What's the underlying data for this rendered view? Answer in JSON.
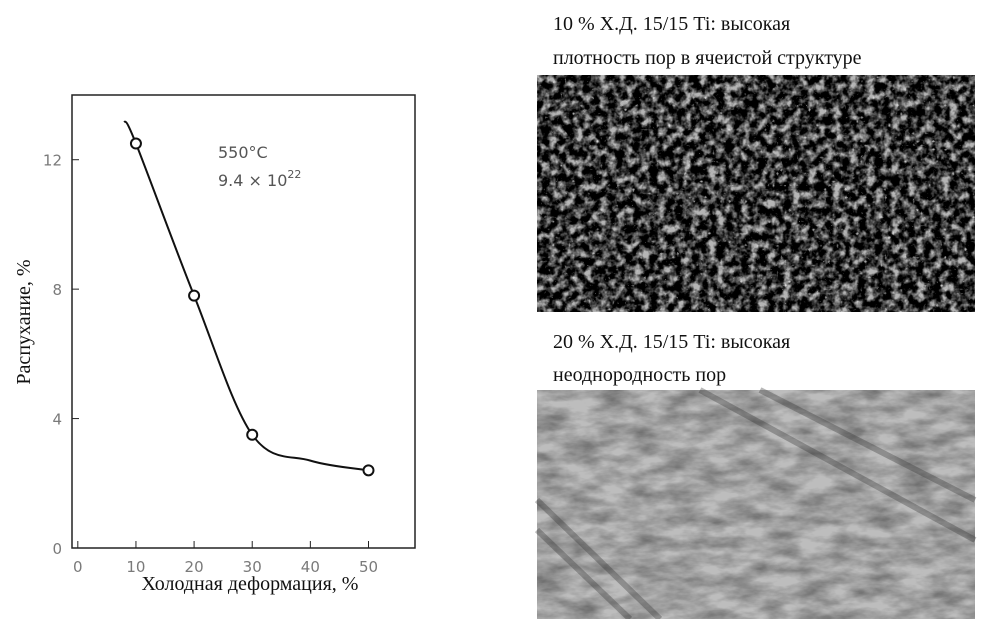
{
  "chart_data": {
    "type": "line",
    "x_label": "Холодная деформация, %",
    "y_label": "Распухание, %",
    "annotation": {
      "temperature": "550°C",
      "fluence": "9.4 × 10",
      "fluence_exponent": "22"
    },
    "curve": {
      "x": [
        8,
        10,
        20,
        30,
        40,
        50
      ],
      "values": [
        13.2,
        12.5,
        7.8,
        3.5,
        2.7,
        2.4
      ]
    },
    "points": {
      "x": [
        10,
        20,
        30,
        50
      ],
      "values": [
        12.5,
        7.8,
        3.5,
        2.4
      ]
    },
    "color": "#111111",
    "xlim": [
      -1,
      58
    ],
    "ylim": [
      0,
      14
    ],
    "xticks": [
      0,
      10,
      20,
      30,
      40,
      50
    ],
    "yticks": [
      0,
      4,
      8,
      12
    ]
  },
  "images": [
    {
      "caption": [
        "10 % Х.Д. 15/15 Ti: высокая",
        "плотность пор в ячеистой структуре"
      ]
    },
    {
      "caption": [
        "20 % Х.Д. 15/15 Ti: высокая",
        "неоднородность пор"
      ]
    }
  ]
}
